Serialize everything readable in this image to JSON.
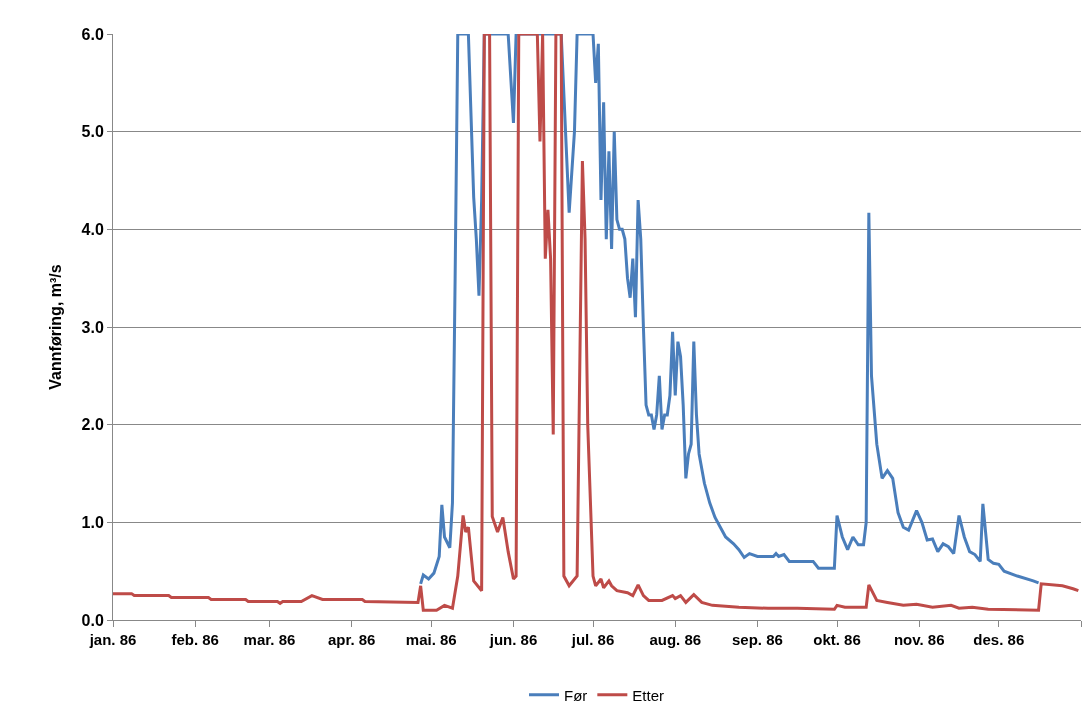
{
  "chart_data": {
    "type": "line",
    "ylabel": "Vannføring, m³/s",
    "xlim": [
      "1986-01-01",
      "1987-01-01"
    ],
    "xticks": [
      {
        "value": "1986-01-01",
        "label": "jan. 86"
      },
      {
        "value": "1986-02-01",
        "label": "feb. 86"
      },
      {
        "value": "1986-03-01",
        "label": "mar. 86"
      },
      {
        "value": "1986-04-01",
        "label": "apr. 86"
      },
      {
        "value": "1986-05-01",
        "label": "mai. 86"
      },
      {
        "value": "1986-06-01",
        "label": "jun. 86"
      },
      {
        "value": "1986-07-01",
        "label": "jul. 86"
      },
      {
        "value": "1986-08-01",
        "label": "aug. 86"
      },
      {
        "value": "1986-09-01",
        "label": "sep. 86"
      },
      {
        "value": "1986-10-01",
        "label": "okt. 86"
      },
      {
        "value": "1986-11-01",
        "label": "nov. 86"
      },
      {
        "value": "1986-12-01",
        "label": "des. 86"
      },
      {
        "value": "1987-01-01",
        "label": null
      }
    ],
    "ylim": [
      0,
      6
    ],
    "yticks": [
      {
        "value": 0,
        "label": "0.0"
      },
      {
        "value": 1,
        "label": "1.0"
      },
      {
        "value": 2,
        "label": "2.0"
      },
      {
        "value": 3,
        "label": "3.0"
      },
      {
        "value": 4,
        "label": "4.0"
      },
      {
        "value": 5,
        "label": "5.0"
      },
      {
        "value": 6,
        "label": "6.0"
      }
    ],
    "grid": "y",
    "legend": "bottom",
    "marker": "none",
    "line_style": "solid",
    "series": [
      {
        "name": "Før",
        "color": "#4a7ebb",
        "x": [
          "1986-04-27",
          "1986-04-28",
          "1986-04-30",
          "1986-05-02",
          "1986-05-04",
          "1986-05-05",
          "1986-05-06",
          "1986-05-08",
          "1986-05-09",
          "1986-05-10",
          "1986-05-11",
          "1986-05-15",
          "1986-05-17",
          "1986-05-18",
          "1986-05-19",
          "1986-05-20",
          "1986-05-21",
          "1986-05-30",
          "1986-06-01",
          "1986-06-02",
          "1986-06-19",
          "1986-06-22",
          "1986-06-24",
          "1986-06-25",
          "1986-07-01",
          "1986-07-02",
          "1986-07-03",
          "1986-07-04",
          "1986-07-05",
          "1986-07-06",
          "1986-07-07",
          "1986-07-08",
          "1986-07-09",
          "1986-07-10",
          "1986-07-11",
          "1986-07-12",
          "1986-07-13",
          "1986-07-14",
          "1986-07-15",
          "1986-07-16",
          "1986-07-17",
          "1986-07-18",
          "1986-07-19",
          "1986-07-20",
          "1986-07-21",
          "1986-07-22",
          "1986-07-23",
          "1986-07-24",
          "1986-07-25",
          "1986-07-26",
          "1986-07-27",
          "1986-07-28",
          "1986-07-29",
          "1986-07-30",
          "1986-07-31",
          "1986-08-01",
          "1986-08-02",
          "1986-08-03",
          "1986-08-04",
          "1986-08-05",
          "1986-08-06",
          "1986-08-07",
          "1986-08-08",
          "1986-08-09",
          "1986-08-10",
          "1986-08-12",
          "1986-08-14",
          "1986-08-16",
          "1986-08-18",
          "1986-08-20",
          "1986-08-23",
          "1986-08-25",
          "1986-08-27",
          "1986-08-29",
          "1986-09-01",
          "1986-09-07",
          "1986-09-08",
          "1986-09-09",
          "1986-09-11",
          "1986-09-13",
          "1986-09-22",
          "1986-09-24",
          "1986-09-30",
          "1986-10-01",
          "1986-10-03",
          "1986-10-05",
          "1986-10-07",
          "1986-10-09",
          "1986-10-11",
          "1986-10-12",
          "1986-10-13",
          "1986-10-14",
          "1986-10-16",
          "1986-10-18",
          "1986-10-20",
          "1986-10-22",
          "1986-10-24",
          "1986-10-26",
          "1986-10-28",
          "1986-10-31",
          "1986-11-02",
          "1986-11-04",
          "1986-11-06",
          "1986-11-08",
          "1986-11-10",
          "1986-11-12",
          "1986-11-14",
          "1986-11-16",
          "1986-11-18",
          "1986-11-20",
          "1986-11-22",
          "1986-11-24",
          "1986-11-25",
          "1986-11-27",
          "1986-11-29",
          "1986-12-01",
          "1986-12-03",
          "1986-12-08",
          "1986-12-14",
          "1986-12-16"
        ],
        "values": [
          0.37,
          0.46,
          0.42,
          0.48,
          0.65,
          1.18,
          0.85,
          0.74,
          1.2,
          3.5,
          6,
          6,
          4.33,
          3.9,
          3.32,
          4.3,
          6,
          6,
          5.09,
          6,
          6,
          4.17,
          5.0,
          6,
          6,
          5.5,
          5.9,
          4.3,
          5.3,
          3.9,
          4.8,
          3.8,
          5.0,
          4.1,
          4.0,
          4.0,
          3.9,
          3.5,
          3.3,
          3.7,
          3.1,
          4.3,
          3.9,
          3.0,
          2.2,
          2.1,
          2.1,
          1.95,
          2.1,
          2.5,
          1.95,
          2.1,
          2.1,
          2.3,
          2.95,
          2.3,
          2.85,
          2.7,
          2.2,
          1.45,
          1.7,
          1.8,
          2.85,
          2.1,
          1.7,
          1.4,
          1.2,
          1.05,
          0.95,
          0.85,
          0.78,
          0.72,
          0.64,
          0.68,
          0.65,
          0.65,
          0.68,
          0.65,
          0.67,
          0.6,
          0.6,
          0.53,
          0.53,
          1.07,
          0.85,
          0.72,
          0.85,
          0.77,
          0.77,
          1.0,
          4.17,
          2.5,
          1.8,
          1.45,
          1.53,
          1.45,
          1.1,
          0.95,
          0.92,
          1.12,
          1.0,
          0.82,
          0.83,
          0.7,
          0.78,
          0.75,
          0.68,
          1.07,
          0.85,
          0.7,
          0.67,
          0.6,
          1.19,
          0.62,
          0.58,
          0.57,
          0.5,
          0.45,
          0.4,
          0.38
        ]
      },
      {
        "name": "Etter",
        "color": "#be4b48",
        "x": [
          "1986-01-01",
          "1986-01-08",
          "1986-01-09",
          "1986-01-22",
          "1986-01-23",
          "1986-02-06",
          "1986-02-07",
          "1986-02-20",
          "1986-02-21",
          "1986-03-04",
          "1986-03-05",
          "1986-03-06",
          "1986-03-13",
          "1986-03-17",
          "1986-03-21",
          "1986-04-05",
          "1986-04-06",
          "1986-04-26",
          "1986-04-27",
          "1986-04-28",
          "1986-05-03",
          "1986-05-06",
          "1986-05-09",
          "1986-05-11",
          "1986-05-13",
          "1986-05-14",
          "1986-05-15",
          "1986-05-17",
          "1986-05-20",
          "1986-05-21",
          "1986-05-23",
          "1986-05-24",
          "1986-05-26",
          "1986-05-28",
          "1986-05-30",
          "1986-06-01",
          "1986-06-02",
          "1986-06-03",
          "1986-06-10",
          "1986-06-11",
          "1986-06-12",
          "1986-06-13",
          "1986-06-14",
          "1986-06-15",
          "1986-06-16",
          "1986-06-17",
          "1986-06-19",
          "1986-06-20",
          "1986-06-22",
          "1986-06-25",
          "1986-06-27",
          "1986-06-28",
          "1986-06-29",
          "1986-07-01",
          "1986-07-02",
          "1986-07-04",
          "1986-07-05",
          "1986-07-07",
          "1986-07-08",
          "1986-07-10",
          "1986-07-14",
          "1986-07-16",
          "1986-07-18",
          "1986-07-20",
          "1986-07-22",
          "1986-07-27",
          "1986-07-31",
          "1986-08-01",
          "1986-08-03",
          "1986-08-05",
          "1986-08-08",
          "1986-08-11",
          "1986-08-15",
          "1986-08-25",
          "1986-09-05",
          "1986-09-16",
          "1986-09-30",
          "1986-10-01",
          "1986-10-04",
          "1986-10-12",
          "1986-10-13",
          "1986-10-16",
          "1986-10-20",
          "1986-10-26",
          "1986-10-31",
          "1986-11-06",
          "1986-11-13",
          "1986-11-16",
          "1986-11-21",
          "1986-11-27",
          "1986-12-16",
          "1986-12-17",
          "1986-12-25",
          "1986-12-29",
          "1986-12-31"
        ],
        "values": [
          0.27,
          0.27,
          0.25,
          0.25,
          0.23,
          0.23,
          0.21,
          0.21,
          0.19,
          0.19,
          0.17,
          0.19,
          0.19,
          0.25,
          0.21,
          0.21,
          0.19,
          0.18,
          0.35,
          0.1,
          0.1,
          0.15,
          0.12,
          0.45,
          1.07,
          0.9,
          0.95,
          0.4,
          0.3,
          6,
          6,
          1.06,
          0.9,
          1.05,
          0.7,
          0.42,
          0.45,
          6,
          6,
          4.9,
          6,
          3.7,
          4.2,
          3.7,
          1.9,
          6,
          6,
          0.45,
          0.35,
          0.45,
          4.7,
          3.9,
          2.0,
          0.45,
          0.35,
          0.42,
          0.33,
          0.4,
          0.35,
          0.3,
          0.28,
          0.25,
          0.36,
          0.25,
          0.2,
          0.2,
          0.25,
          0.22,
          0.25,
          0.18,
          0.26,
          0.18,
          0.15,
          0.13,
          0.12,
          0.12,
          0.11,
          0.15,
          0.13,
          0.13,
          0.36,
          0.2,
          0.18,
          0.15,
          0.16,
          0.13,
          0.15,
          0.12,
          0.13,
          0.11,
          0.1,
          0.37,
          0.35,
          0.32,
          0.3
        ]
      }
    ]
  }
}
